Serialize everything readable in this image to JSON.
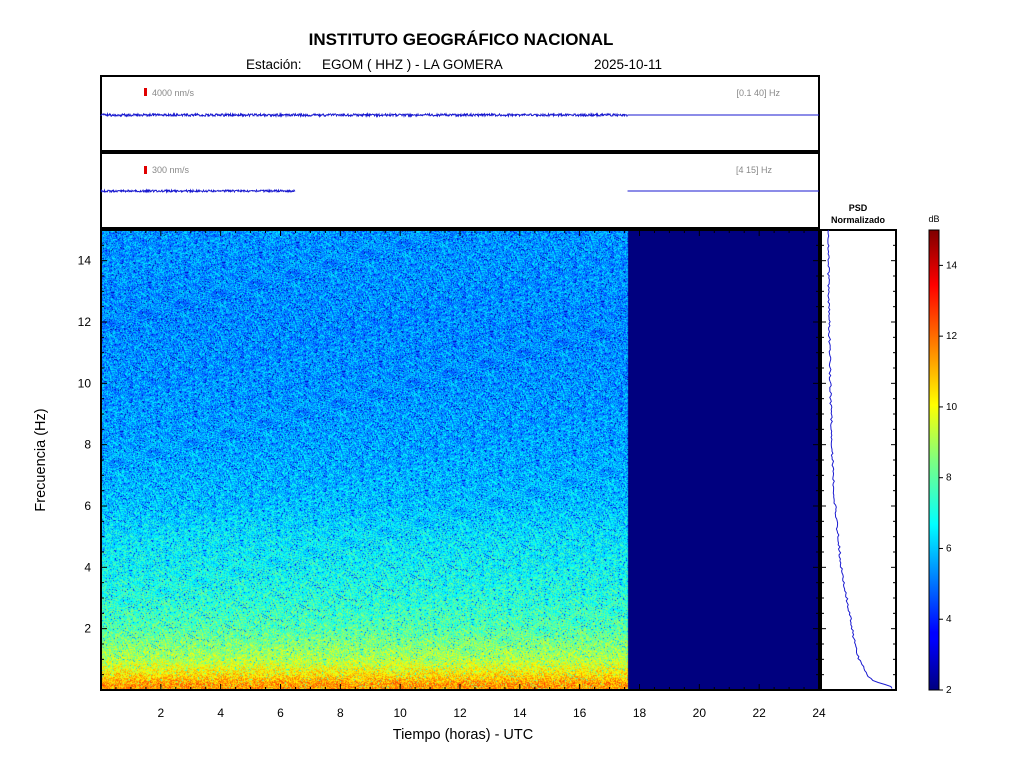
{
  "header": {
    "title": "INSTITUTO GEOGRÁFICO NACIONAL",
    "station_label": "Estación:",
    "station": "EGOM ( HHZ ) - LA GOMERA",
    "date": "2025-10-11"
  },
  "traces": [
    {
      "scale": "4000 nm/s",
      "band": "[0.1 40] Hz"
    },
    {
      "scale": "300 nm/s",
      "band": "[4 15] Hz"
    }
  ],
  "colors": {
    "trace": "#1a1ad0",
    "scale_marker": "#e00000",
    "frame": "#000000",
    "nodata": "#00007f"
  },
  "chart_data": [
    {
      "type": "heatmap",
      "title": "",
      "xlabel": "Tiempo (horas) - UTC",
      "ylabel": "Frecuencia  (Hz)",
      "xlim": [
        0,
        24
      ],
      "ylim": [
        0,
        15
      ],
      "x_ticks": [
        "2",
        "4",
        "6",
        "8",
        "10",
        "12",
        "14",
        "16",
        "18",
        "20",
        "22",
        "24"
      ],
      "y_ticks": [
        "2",
        "4",
        "6",
        "8",
        "10",
        "12",
        "14"
      ],
      "data_end_hour": 17.6,
      "colorbar": {
        "label": "dB",
        "range": [
          2,
          15
        ],
        "ticks": [
          "2",
          "4",
          "6",
          "8",
          "10",
          "12",
          "14"
        ]
      },
      "mean_level_db_by_freq": {
        "freq_hz": [
          0.2,
          0.5,
          1,
          1.5,
          2,
          3,
          4,
          5,
          6,
          8,
          10,
          12,
          14
        ],
        "db": [
          11.5,
          10.5,
          9.2,
          8.6,
          8.0,
          7.4,
          7.0,
          6.7,
          6.2,
          5.8,
          5.6,
          5.5,
          5.6
        ]
      }
    },
    {
      "type": "line",
      "title": "PSD\nNormalizado",
      "title_lines": [
        "PSD",
        "Normalizado"
      ],
      "freq_hz": [
        0.1,
        0.2,
        0.3,
        0.5,
        0.8,
        1,
        1.5,
        2,
        2.5,
        3,
        3.5,
        4,
        5,
        6,
        7,
        8,
        10,
        12,
        14,
        15
      ],
      "psd": [
        1.0,
        0.85,
        0.7,
        0.62,
        0.55,
        0.5,
        0.44,
        0.4,
        0.36,
        0.32,
        0.28,
        0.24,
        0.19,
        0.15,
        0.12,
        0.1,
        0.08,
        0.06,
        0.05,
        0.05
      ]
    }
  ]
}
